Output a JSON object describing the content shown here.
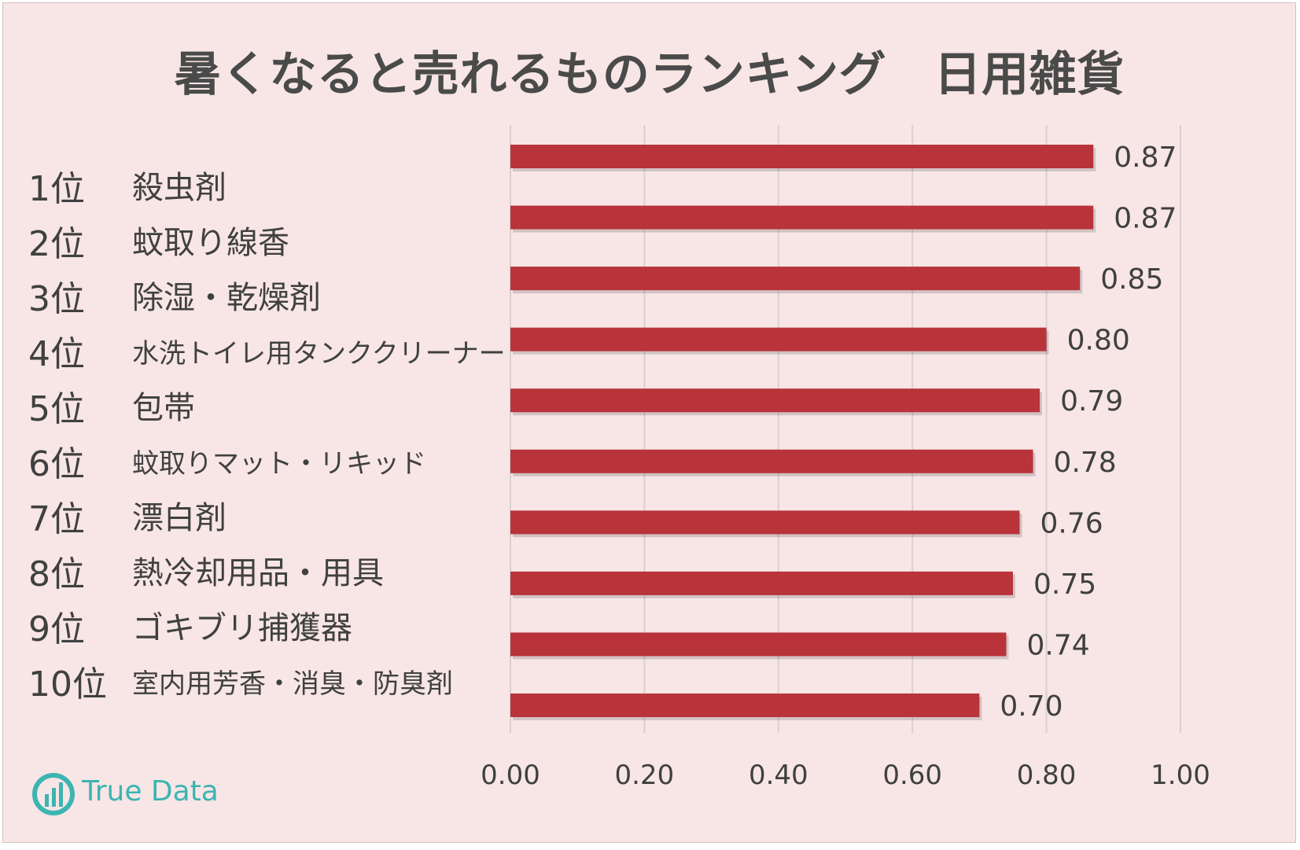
{
  "title": "暑くなると売れるものランキング　日用雑貨",
  "ranking": [
    {
      "rank": "1位",
      "name": "殺虫剤"
    },
    {
      "rank": "2位",
      "name": "蚊取り線香"
    },
    {
      "rank": "3位",
      "name": "除湿・乾燥剤"
    },
    {
      "rank": "4位",
      "name": "水洗トイレ用タンククリーナー"
    },
    {
      "rank": "5位",
      "name": "包帯"
    },
    {
      "rank": "6位",
      "name": "蚊取りマット・リキッド"
    },
    {
      "rank": "7位",
      "name": "漂白剤"
    },
    {
      "rank": "8位",
      "name": "熱冷却用品・用具"
    },
    {
      "rank": "9位",
      "name": "ゴキブリ捕獲器"
    },
    {
      "rank": "10位",
      "name": "室内用芳香・消臭・防臭剤"
    }
  ],
  "logo": {
    "text": "True Data",
    "icon": "bar-chart-circle-icon"
  },
  "colors": {
    "bar": "#b8333a",
    "background": "#f7e6e5",
    "grid": "#d9d0cf",
    "logo": "#3bb5b2"
  },
  "chart_data": {
    "type": "bar",
    "orientation": "horizontal",
    "values": [
      0.87,
      0.87,
      0.85,
      0.8,
      0.79,
      0.78,
      0.76,
      0.75,
      0.74,
      0.7
    ],
    "value_labels": [
      "0.87",
      "0.87",
      "0.85",
      "0.80",
      "0.79",
      "0.78",
      "0.76",
      "0.75",
      "0.74",
      "0.70"
    ],
    "xlim": [
      0,
      1.0
    ],
    "xticks": [
      "0.00",
      "0.20",
      "0.40",
      "0.60",
      "0.80",
      "1.00"
    ],
    "grid": true,
    "legend": "none"
  }
}
